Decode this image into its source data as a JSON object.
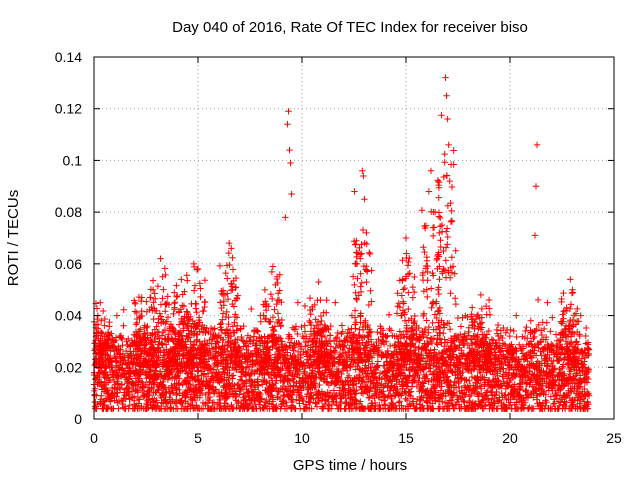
{
  "chart_data": {
    "type": "scatter",
    "title": "Day 040 of 2016, Rate Of TEC Index for receiver biso",
    "xlabel": "GPS time / hours",
    "ylabel": "ROTI / TECUs",
    "xlim": [
      0,
      25
    ],
    "ylim": [
      0,
      0.14
    ],
    "xticks": [
      0,
      5,
      10,
      15,
      20,
      25
    ],
    "yticks": [
      0,
      0.02,
      0.04,
      0.06,
      0.08,
      0.1,
      0.12,
      0.14
    ],
    "xtick_labels": [
      "0",
      "5",
      "10",
      "15",
      "20",
      "25"
    ],
    "ytick_labels": [
      "0",
      "0.02",
      "0.04",
      "0.06",
      "0.08",
      "0.1",
      "0.12",
      "0.14"
    ],
    "grid": true,
    "marker": "+",
    "color": "#ff0000",
    "points": [
      [
        0.0,
        0.017
      ],
      [
        0.1,
        0.022
      ],
      [
        0.2,
        0.014
      ],
      [
        0.3,
        0.045
      ],
      [
        0.35,
        0.038
      ],
      [
        0.5,
        0.012
      ],
      [
        0.6,
        0.02
      ],
      [
        0.8,
        0.009
      ],
      [
        1.0,
        0.018
      ],
      [
        1.1,
        0.04
      ],
      [
        1.2,
        0.027
      ],
      [
        1.5,
        0.016
      ],
      [
        1.6,
        0.01
      ],
      [
        1.8,
        0.022
      ],
      [
        2.0,
        0.013
      ],
      [
        2.3,
        0.047
      ],
      [
        2.5,
        0.018
      ],
      [
        2.8,
        0.008
      ],
      [
        3.0,
        0.024
      ],
      [
        3.2,
        0.062
      ],
      [
        3.3,
        0.055
      ],
      [
        3.5,
        0.02
      ],
      [
        3.8,
        0.012
      ],
      [
        4.0,
        0.03
      ],
      [
        4.2,
        0.054
      ],
      [
        4.5,
        0.016
      ],
      [
        4.8,
        0.06
      ],
      [
        5.0,
        0.058
      ],
      [
        5.2,
        0.022
      ],
      [
        5.5,
        0.01
      ],
      [
        5.8,
        0.035
      ],
      [
        6.0,
        0.018
      ],
      [
        6.3,
        0.048
      ],
      [
        6.5,
        0.068
      ],
      [
        6.6,
        0.066
      ],
      [
        6.8,
        0.02
      ],
      [
        7.0,
        0.012
      ],
      [
        7.2,
        0.03
      ],
      [
        7.5,
        0.015
      ],
      [
        7.8,
        0.022
      ],
      [
        8.0,
        0.04
      ],
      [
        8.3,
        0.018
      ],
      [
        8.6,
        0.059
      ],
      [
        8.8,
        0.055
      ],
      [
        9.0,
        0.03
      ],
      [
        9.2,
        0.078
      ],
      [
        9.3,
        0.114
      ],
      [
        9.35,
        0.119
      ],
      [
        9.4,
        0.104
      ],
      [
        9.45,
        0.099
      ],
      [
        9.5,
        0.087
      ],
      [
        9.6,
        0.02
      ],
      [
        9.8,
        0.045
      ],
      [
        10.0,
        0.015
      ],
      [
        10.3,
        0.03
      ],
      [
        10.5,
        0.012
      ],
      [
        10.8,
        0.053
      ],
      [
        11.0,
        0.022
      ],
      [
        11.3,
        0.018
      ],
      [
        11.6,
        0.045
      ],
      [
        11.8,
        0.01
      ],
      [
        12.0,
        0.028
      ],
      [
        12.2,
        0.016
      ],
      [
        12.4,
        0.04
      ],
      [
        12.6,
        0.006
      ],
      [
        12.8,
        0.062
      ],
      [
        12.9,
        0.096
      ],
      [
        12.95,
        0.094
      ],
      [
        13.0,
        0.085
      ],
      [
        13.1,
        0.072
      ],
      [
        13.2,
        0.02
      ],
      [
        13.5,
        0.012
      ],
      [
        13.8,
        0.035
      ],
      [
        14.0,
        0.018
      ],
      [
        14.3,
        0.025
      ],
      [
        14.5,
        0.01
      ],
      [
        14.8,
        0.04
      ],
      [
        15.0,
        0.07
      ],
      [
        15.1,
        0.056
      ],
      [
        15.3,
        0.022
      ],
      [
        15.5,
        0.036
      ],
      [
        15.7,
        0.012
      ],
      [
        16.0,
        0.05
      ],
      [
        16.1,
        0.088
      ],
      [
        16.2,
        0.096
      ],
      [
        16.3,
        0.074
      ],
      [
        16.4,
        0.08
      ],
      [
        16.5,
        0.062
      ],
      [
        16.6,
        0.072
      ],
      [
        16.8,
        0.058
      ],
      [
        16.9,
        0.132
      ],
      [
        16.95,
        0.125
      ],
      [
        17.0,
        0.116
      ],
      [
        17.05,
        0.106
      ],
      [
        17.1,
        0.092
      ],
      [
        17.3,
        0.025
      ],
      [
        17.5,
        0.016
      ],
      [
        17.8,
        0.032
      ],
      [
        18.0,
        0.012
      ],
      [
        18.3,
        0.02
      ],
      [
        18.6,
        0.048
      ],
      [
        18.8,
        0.03
      ],
      [
        19.0,
        0.015
      ],
      [
        19.3,
        0.022
      ],
      [
        19.6,
        0.01
      ],
      [
        19.8,
        0.018
      ],
      [
        20.0,
        0.026
      ],
      [
        20.3,
        0.04
      ],
      [
        20.5,
        0.012
      ],
      [
        20.8,
        0.02
      ],
      [
        21.0,
        0.038
      ],
      [
        21.2,
        0.071
      ],
      [
        21.25,
        0.09
      ],
      [
        21.3,
        0.106
      ],
      [
        21.5,
        0.018
      ],
      [
        21.8,
        0.045
      ],
      [
        22.0,
        0.012
      ],
      [
        22.3,
        0.025
      ],
      [
        22.6,
        0.016
      ],
      [
        22.9,
        0.054
      ],
      [
        23.0,
        0.05
      ],
      [
        23.2,
        0.03
      ],
      [
        23.4,
        0.04
      ],
      [
        23.6,
        0.014
      ],
      [
        23.8,
        0.009
      ]
    ],
    "noise_band": {
      "x_range": [
        0,
        23.8
      ],
      "typical_y_range": [
        0.004,
        0.035
      ],
      "median_y": 0.017
    },
    "bursts": [
      {
        "x": 0.3,
        "ymax": 0.047
      },
      {
        "x": 2.3,
        "ymax": 0.053
      },
      {
        "x": 3.2,
        "ymax": 0.062
      },
      {
        "x": 4.2,
        "ymax": 0.054
      },
      {
        "x": 4.9,
        "ymax": 0.061
      },
      {
        "x": 6.5,
        "ymax": 0.068
      },
      {
        "x": 8.6,
        "ymax": 0.06
      },
      {
        "x": 10.8,
        "ymax": 0.053
      },
      {
        "x": 12.9,
        "ymax": 0.096
      },
      {
        "x": 15.0,
        "ymax": 0.072
      },
      {
        "x": 16.2,
        "ymax": 0.096
      },
      {
        "x": 16.95,
        "ymax": 0.132
      },
      {
        "x": 18.6,
        "ymax": 0.049
      },
      {
        "x": 22.9,
        "ymax": 0.055
      }
    ]
  }
}
